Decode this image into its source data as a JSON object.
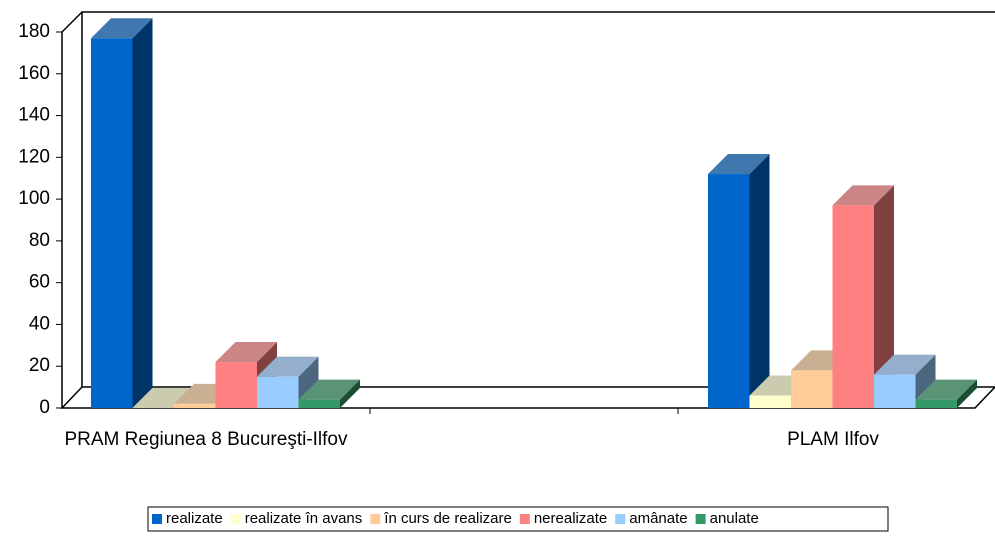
{
  "chart_data": {
    "type": "bar3d",
    "categories": [
      "PRAM Regiunea 8 Bucureşti-Ilfov",
      "PLAM Ilfov"
    ],
    "series": [
      {
        "name": "realizate",
        "color": "#0066cc",
        "values": [
          177,
          112
        ]
      },
      {
        "name": "realizate în avans",
        "color": "#ffffcc",
        "values": [
          0,
          6
        ]
      },
      {
        "name": "în curs de realizare",
        "color": "#ffcc99",
        "values": [
          2,
          18
        ]
      },
      {
        "name": "nerealizate",
        "color": "#ff8080",
        "values": [
          22,
          97
        ]
      },
      {
        "name": "amânate",
        "color": "#99ccff",
        "values": [
          15,
          16
        ]
      },
      {
        "name": "anulate",
        "color": "#339966",
        "values": [
          4,
          4
        ]
      }
    ],
    "ylim": [
      0,
      180
    ],
    "yticks": [
      0,
      20,
      40,
      60,
      80,
      100,
      120,
      140,
      160,
      180
    ],
    "grid": false,
    "legend": "bottom"
  }
}
